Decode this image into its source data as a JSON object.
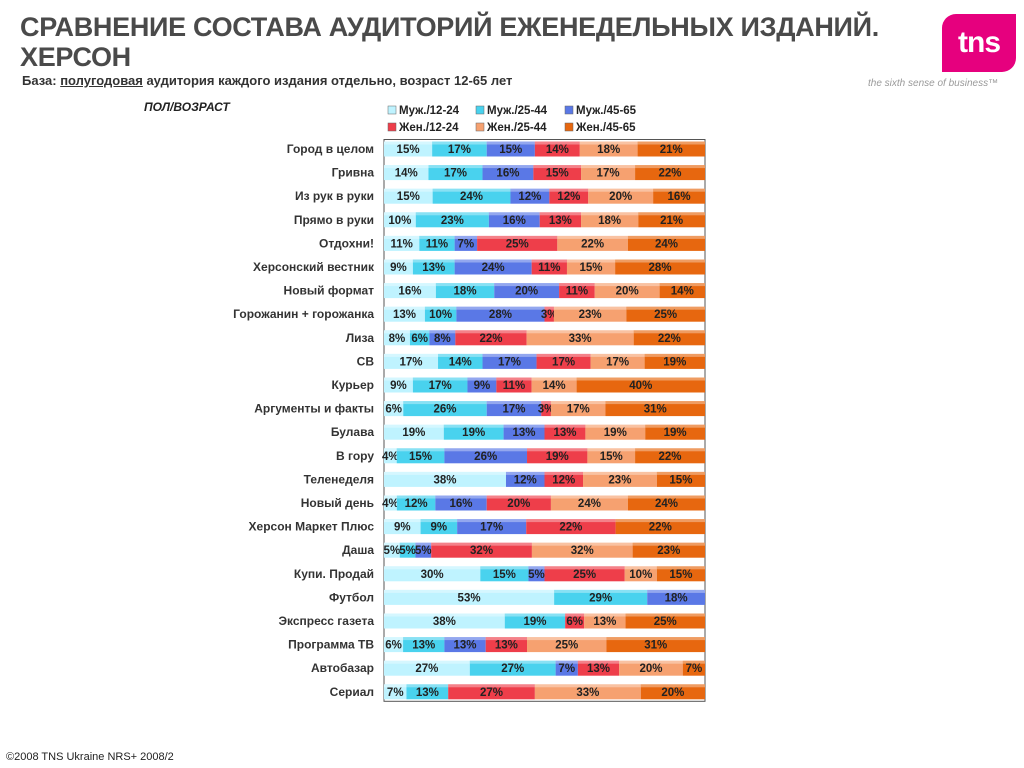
{
  "header": {
    "title": "СРАВНЕНИЕ СОСТАВА АУДИТОРИЙ ЕЖЕНЕДЕЛЬНЫХ ИЗДАНИЙ. ХЕРСОН",
    "base_prefix": "База: ",
    "base_underlined": "полугодовая",
    "base_suffix": " аудитория каждого издания отдельно, возраст 12-65 лет"
  },
  "brand": {
    "logo_text": "tns",
    "tagline": "the sixth sense of business™",
    "accent": "#e6007e"
  },
  "axis_header": "ПОЛ/ВОЗРАСТ",
  "footer": "©2008 TNS Ukraine  NRS+ 2008/2",
  "chart_data": {
    "type": "bar",
    "stacked": true,
    "orientation": "horizontal",
    "unit": "%",
    "legend_position": "top",
    "series": [
      {
        "name": "Муж./12-24",
        "color": "#bff3ff"
      },
      {
        "name": "Муж./25-44",
        "color": "#49d2ee"
      },
      {
        "name": "Муж./45-65",
        "color": "#5a78e6"
      },
      {
        "name": "Жен./12-24",
        "color": "#ee3e4a"
      },
      {
        "name": "Жен./25-44",
        "color": "#f6a170"
      },
      {
        "name": "Жен./45-65",
        "color": "#e7670f"
      }
    ],
    "categories": [
      "Город в целом",
      "Гривна",
      "Из рук в руки",
      "Прямо в руки",
      "Отдохни!",
      "Херсонский вестник",
      "Новый формат",
      "Горожанин + горожанка",
      "Лиза",
      "СВ",
      "Курьер",
      "Аргументы и факты",
      "Булава",
      "В гору",
      "Теленеделя",
      "Новый день",
      "Херсон Маркет Плюс",
      "Даша",
      "Купи. Продай",
      "Футбол",
      "Экспресс газета",
      "Программа ТВ",
      "Автобазар",
      "Сериал"
    ],
    "values": [
      [
        15,
        17,
        15,
        14,
        18,
        21
      ],
      [
        14,
        17,
        16,
        15,
        17,
        22
      ],
      [
        15,
        24,
        12,
        12,
        20,
        16
      ],
      [
        10,
        23,
        16,
        13,
        18,
        21
      ],
      [
        11,
        11,
        7,
        25,
        22,
        24
      ],
      [
        9,
        13,
        24,
        11,
        15,
        28
      ],
      [
        16,
        18,
        20,
        11,
        20,
        14
      ],
      [
        13,
        10,
        28,
        3,
        23,
        25
      ],
      [
        8,
        6,
        8,
        22,
        33,
        22
      ],
      [
        17,
        14,
        17,
        17,
        17,
        19
      ],
      [
        9,
        17,
        9,
        11,
        14,
        40
      ],
      [
        6,
        26,
        17,
        3,
        17,
        31
      ],
      [
        19,
        19,
        13,
        13,
        19,
        19
      ],
      [
        4,
        15,
        26,
        19,
        15,
        22
      ],
      [
        38,
        0,
        12,
        12,
        23,
        15
      ],
      [
        4,
        12,
        16,
        20,
        24,
        24
      ],
      [
        9,
        9,
        17,
        22,
        0,
        22
      ],
      [
        5,
        5,
        5,
        32,
        32,
        23
      ],
      [
        30,
        15,
        5,
        25,
        10,
        15
      ],
      [
        53,
        29,
        18,
        0,
        0,
        0
      ],
      [
        38,
        19,
        0,
        6,
        13,
        25
      ],
      [
        6,
        13,
        13,
        13,
        25,
        31
      ],
      [
        27,
        27,
        7,
        13,
        20,
        7
      ],
      [
        7,
        13,
        0,
        27,
        33,
        20
      ]
    ],
    "display_labels": [
      [
        "15%",
        "17%",
        "15%",
        "14%",
        "18%",
        "21%"
      ],
      [
        "14%",
        "17%",
        "16%",
        "15%",
        "17%",
        "22%"
      ],
      [
        "15%",
        "24%",
        "12%",
        "12%",
        "20%",
        "16%"
      ],
      [
        "10%",
        "23%",
        "16%",
        "13%",
        "18%",
        "21%"
      ],
      [
        "11%",
        "11%",
        "7%",
        "25%",
        "22%",
        "24%"
      ],
      [
        "9%",
        "13%",
        "24%",
        "11%",
        "15%",
        "28%"
      ],
      [
        "16%",
        "18%",
        "20%",
        "11%",
        "20%",
        "14%"
      ],
      [
        "13%",
        "10%",
        "28%",
        "3%",
        "23%",
        "25%"
      ],
      [
        "8%",
        "6%",
        "8%",
        "22%",
        "33%",
        "22%"
      ],
      [
        "17%",
        "14%",
        "17%",
        "17%",
        "17%",
        "19%"
      ],
      [
        "9%",
        "17%",
        "9%",
        "11%",
        "14%",
        "40%"
      ],
      [
        "6%",
        "26%",
        "17%",
        "3%",
        "17%",
        "31%"
      ],
      [
        "19%",
        "19%",
        "13%",
        "13%",
        "19%",
        "19%"
      ],
      [
        "4%",
        "15%",
        "26%",
        "19%",
        "15%",
        "22%"
      ],
      [
        "38%",
        "",
        "12%",
        "12%",
        "23%",
        "15%"
      ],
      [
        "4%",
        "12%",
        "16%",
        "20%",
        "24%",
        "24%"
      ],
      [
        "9%",
        "9%",
        "17%",
        "22%",
        "",
        "22%"
      ],
      [
        "5%",
        "5%",
        "5%",
        "32%",
        "32%",
        "23%"
      ],
      [
        "30%",
        "15%",
        "5%",
        "25%",
        "10%",
        "15%"
      ],
      [
        "53%",
        "29%",
        "18%",
        "",
        "",
        ""
      ],
      [
        "38%",
        "19%",
        "",
        "6%",
        "13%",
        "25%"
      ],
      [
        "6%",
        "13%",
        "13%",
        "13%",
        "25%",
        "31%"
      ],
      [
        "27%",
        "27%",
        "7%",
        "13%",
        "20%",
        "7%"
      ],
      [
        "7%",
        "13%",
        "",
        "27%",
        "33%",
        "20%"
      ]
    ]
  }
}
